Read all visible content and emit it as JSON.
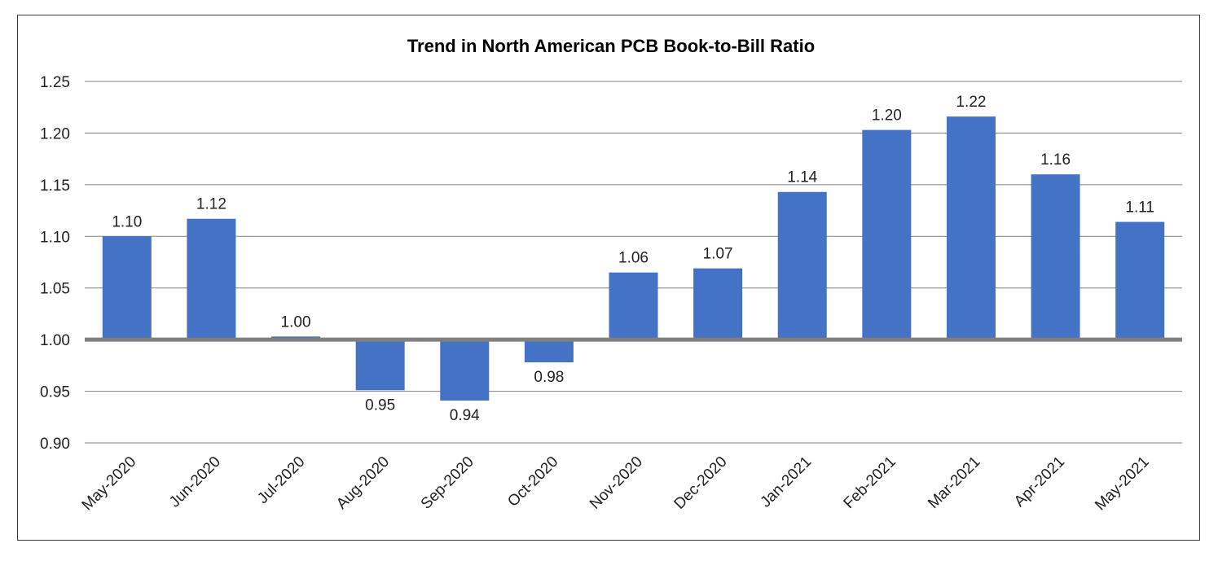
{
  "chart_data": {
    "type": "bar",
    "title": "Trend in North American PCB Book-to-Bill Ratio",
    "xlabel": "",
    "ylabel": "",
    "baseline": 1.0,
    "ylim": [
      0.9,
      1.25
    ],
    "yticks": [
      "1.25",
      "1.20",
      "1.15",
      "1.10",
      "1.05",
      "1.00",
      "0.95",
      "0.90"
    ],
    "ytick_values": [
      1.25,
      1.2,
      1.15,
      1.1,
      1.05,
      1.0,
      0.95,
      0.9
    ],
    "categories": [
      "May-2020",
      "Jun-2020",
      "Jul-2020",
      "Aug-2020",
      "Sep-2020",
      "Oct-2020",
      "Nov-2020",
      "Dec-2020",
      "Jan-2021",
      "Feb-2021",
      "Mar-2021",
      "Apr-2021",
      "May-2021"
    ],
    "values": [
      1.1,
      1.117,
      1.003,
      0.951,
      0.941,
      0.978,
      1.065,
      1.069,
      1.143,
      1.203,
      1.216,
      1.16,
      1.114
    ],
    "data_labels": [
      "1.10",
      "1.12",
      "1.00",
      "0.95",
      "0.94",
      "0.98",
      "1.06",
      "1.07",
      "1.14",
      "1.20",
      "1.22",
      "1.16",
      "1.11"
    ],
    "grid": true,
    "legend": "none",
    "colors": {
      "bar": "#4472c4",
      "grid": "#808080",
      "baseline": "#808080",
      "text": "#222222"
    }
  }
}
